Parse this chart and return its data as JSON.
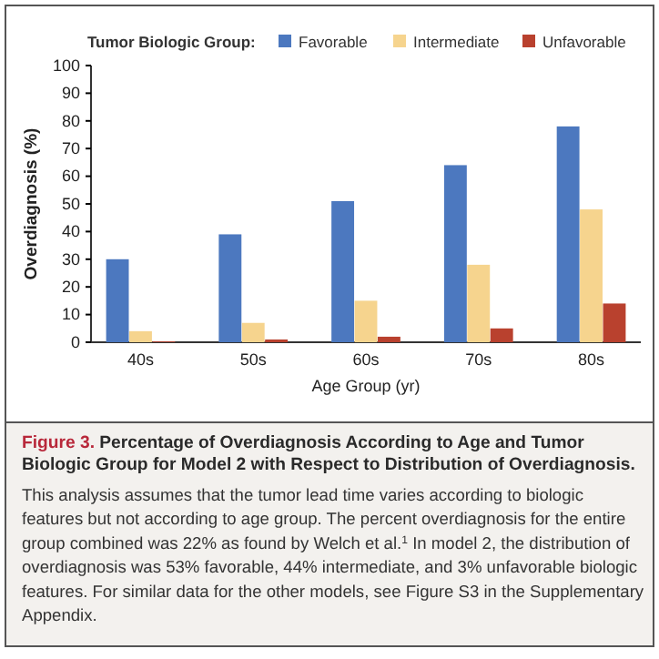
{
  "chart_data": {
    "type": "bar",
    "title": "Figure 3. Percentage of Overdiagnosis According to Age and Tumor Biologic Group for Model 2 with Respect to Distribution of Overdiagnosis.",
    "annotations": [
      "This analysis assumes that the tumor lead time varies according to biologic features but not according to age group. The percent overdiagnosis for the entire group combined was 22% as found by Welch et al.$^{1}$ In model 2, the distribution of overdiagnosis was 53% favorable, 44% intermediate, and 3% unfavorable biologic features. For similar data for the other models, see Figure S3 in the Supplementary Appendix."
    ],
    "xlabel": "Age Group (yr)",
    "ylabel": "Overdiagnosis (%)",
    "legend_title": "Tumor Biologic Group:",
    "categories": [
      "40s",
      "50s",
      "60s",
      "70s",
      "80s"
    ],
    "series": [
      {
        "name": "Favorable",
        "color": "#4c78bf",
        "values": [
          30,
          39,
          51,
          64,
          78
        ]
      },
      {
        "name": "Intermediate",
        "color": "#f6d48e",
        "values": [
          4,
          7,
          15,
          28,
          48
        ]
      },
      {
        "name": "Unfavorable",
        "color": "#b9412e",
        "values": [
          0.3,
          1,
          2,
          5,
          14
        ]
      }
    ],
    "ylim": [
      0,
      100
    ],
    "yticks": [
      0,
      10,
      20,
      30,
      40,
      50,
      60,
      70,
      80,
      90,
      100
    ],
    "grid": false,
    "legend": "top"
  }
}
